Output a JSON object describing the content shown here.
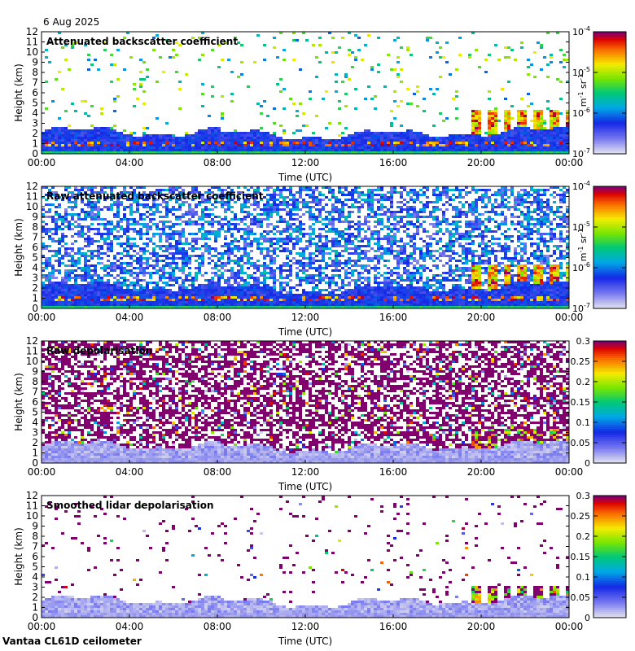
{
  "date": "6 Aug 2025",
  "station": "Vantaa CL61D ceilometer",
  "chart_data": [
    {
      "type": "heatmap",
      "title": "Attenuated backscatter coefficient",
      "xlabel": "Time (UTC)",
      "ylabel": "Height (km)",
      "xticks": [
        "00:00",
        "04:00",
        "08:00",
        "12:00",
        "16:00",
        "20:00",
        "00:00"
      ],
      "yticks": [
        "0",
        "1",
        "2",
        "3",
        "4",
        "5",
        "6",
        "7",
        "8",
        "9",
        "10",
        "11",
        "12"
      ],
      "ylim": [
        0,
        12
      ],
      "xlim_hours": [
        0,
        24
      ],
      "colorbar": {
        "scale": "log",
        "ticks": [
          "10",
          "10",
          "10",
          "10"
        ],
        "tick_exponents": [
          "-7",
          "-6",
          "-5",
          "-4"
        ],
        "unit": "m",
        "unit_exp1": "-1",
        "unit_mid": " sr",
        "unit_exp2": "-1"
      },
      "features": {
        "boundary_layer_top_km": 2.6,
        "clouds_after_hour": 19.2,
        "cloud_top_km": 4.5
      }
    },
    {
      "type": "heatmap",
      "title": "Raw attenuated backscatter coefficient",
      "xlabel": "Time (UTC)",
      "ylabel": "Height (km)",
      "xticks": [
        "00:00",
        "04:00",
        "08:00",
        "12:00",
        "16:00",
        "20:00",
        "00:00"
      ],
      "yticks": [
        "0",
        "1",
        "2",
        "3",
        "4",
        "5",
        "6",
        "7",
        "8",
        "9",
        "10",
        "11",
        "12"
      ],
      "ylim": [
        0,
        12
      ],
      "xlim_hours": [
        0,
        24
      ],
      "colorbar": {
        "scale": "log",
        "ticks": [
          "10",
          "10",
          "10",
          "10"
        ],
        "tick_exponents": [
          "-7",
          "-6",
          "-5",
          "-4"
        ],
        "unit": "m",
        "unit_exp1": "-1",
        "unit_mid": " sr",
        "unit_exp2": "-1"
      },
      "features": {
        "boundary_layer_top_km": 2.6,
        "clouds_after_hour": 19.2,
        "cloud_top_km": 4.5
      }
    },
    {
      "type": "heatmap",
      "title": "Raw depolarisation",
      "xlabel": "Time (UTC)",
      "ylabel": "Height (km)",
      "xticks": [
        "00:00",
        "04:00",
        "08:00",
        "12:00",
        "16:00",
        "20:00",
        "00:00"
      ],
      "yticks": [
        "0",
        "1",
        "2",
        "3",
        "4",
        "5",
        "6",
        "7",
        "8",
        "9",
        "10",
        "11",
        "12"
      ],
      "ylim": [
        0,
        12
      ],
      "xlim_hours": [
        0,
        24
      ],
      "colorbar": {
        "scale": "linear",
        "ticks": [
          "0",
          "0.05",
          "0.1",
          "0.15",
          "0.2",
          "0.25",
          "0.3"
        ],
        "range": [
          0,
          0.3
        ]
      },
      "features": {
        "boundary_layer_top_km": 2.6,
        "clouds_after_hour": 19.2,
        "cloud_top_km": 3.5
      }
    },
    {
      "type": "heatmap",
      "title": "Smoothed lidar depolarisation",
      "xlabel": "Time (UTC)",
      "ylabel": "Height (km)",
      "xticks": [
        "00:00",
        "04:00",
        "08:00",
        "12:00",
        "16:00",
        "20:00",
        "00:00"
      ],
      "yticks": [
        "0",
        "1",
        "2",
        "3",
        "4",
        "5",
        "6",
        "7",
        "8",
        "9",
        "10",
        "11",
        "12"
      ],
      "ylim": [
        0,
        12
      ],
      "xlim_hours": [
        0,
        24
      ],
      "colorbar": {
        "scale": "linear",
        "ticks": [
          "0",
          "0.05",
          "0.1",
          "0.15",
          "0.2",
          "0.25",
          "0.3"
        ],
        "range": [
          0,
          0.3
        ]
      },
      "features": {
        "boundary_layer_top_km": 2.6,
        "clouds_after_hour": 19.2,
        "cloud_top_km": 3.2
      }
    }
  ]
}
